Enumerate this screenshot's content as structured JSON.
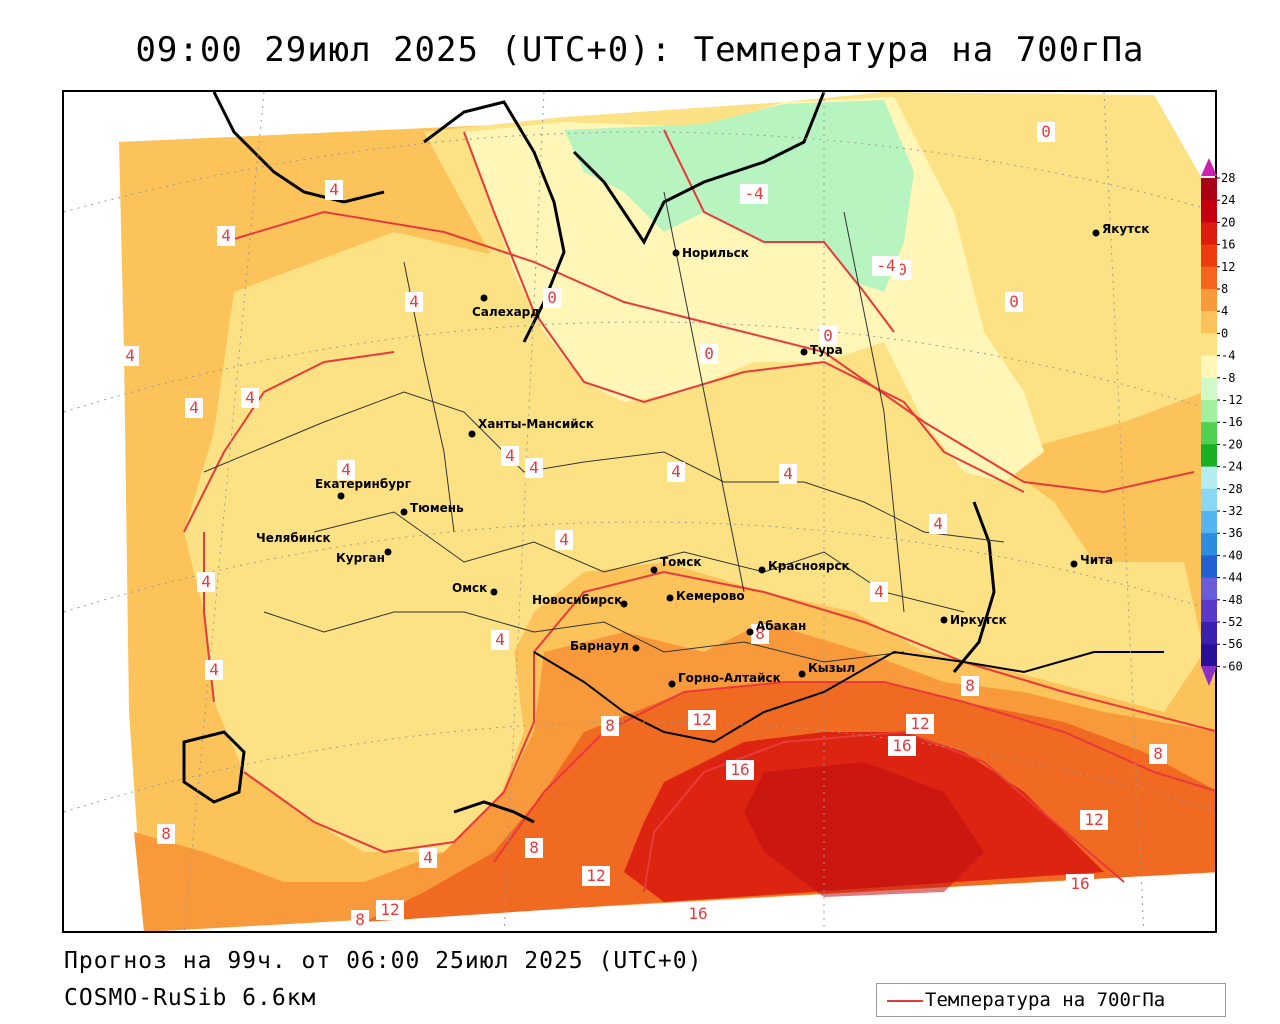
{
  "title": "09:00 29июл 2025 (UTC+0): Температура на 700гПа",
  "footer": {
    "forecast": "Прогноз на 99ч. от 06:00 25июл 2025 (UTC+0)",
    "model": "COSMO-RuSib 6.6км"
  },
  "legend": {
    "label": "Температура на 700гПа",
    "line_color": "#e83a3a"
  },
  "colorbar": {
    "ticks": [
      "28",
      "24",
      "20",
      "16",
      "12",
      "8",
      "4",
      "0",
      "-4",
      "-8",
      "-12",
      "-16",
      "-20",
      "-24",
      "-28",
      "-32",
      "-36",
      "-40",
      "-44",
      "-48",
      "-52",
      "-56",
      "-60"
    ],
    "colors": [
      "#a80016",
      "#c40010",
      "#dc1c0c",
      "#ec3c10",
      "#f4641c",
      "#f89a3c",
      "#fbc35a",
      "#fde285",
      "#fff6b8",
      "#d2f8c8",
      "#a0f0a0",
      "#50d050",
      "#18b020",
      "#b4ecf0",
      "#88d8f4",
      "#54b4f0",
      "#2c8ce0",
      "#2060d0",
      "#6a5cd8",
      "#5a38c8",
      "#3c20b0",
      "#2a1098"
    ],
    "top_arrow_color": "#d020b0",
    "bottom_arrow_color": "#8a30c8"
  },
  "fill_colors": {
    "t_below_-4": "#b8f4c0",
    "t_-4_0": "#fff6b8",
    "t_0_4": "#fde285",
    "t_4_8": "#fbc35a",
    "t_8_12": "#f89a3c",
    "t_12_16": "#f06a22",
    "t_16_20": "#dc2410",
    "t_20_24": "#c00c10"
  },
  "cities": [
    {
      "name": "Салехард"
    },
    {
      "name": "Норильск"
    },
    {
      "name": "Тура"
    },
    {
      "name": "Якутск"
    },
    {
      "name": "Ханты-Мансийск"
    },
    {
      "name": "Екатеринбург"
    },
    {
      "name": "Тюмень"
    },
    {
      "name": "Челябинск"
    },
    {
      "name": "Курган"
    },
    {
      "name": "Омск"
    },
    {
      "name": "Новосибирск"
    },
    {
      "name": "Томск"
    },
    {
      "name": "Кемерово"
    },
    {
      "name": "Красноярск"
    },
    {
      "name": "Абакан"
    },
    {
      "name": "Барнаул"
    },
    {
      "name": "Горно-Алтайск"
    },
    {
      "name": "Кызыл"
    },
    {
      "name": "Иркутск"
    },
    {
      "name": "Чита"
    }
  ],
  "isotherm_labels": [
    "0",
    "0",
    "0",
    "0",
    "0",
    "0",
    "-4",
    "-4",
    "4",
    "4",
    "4",
    "4",
    "4",
    "4",
    "4",
    "4",
    "4",
    "4",
    "4",
    "4",
    "4",
    "4",
    "4",
    "4",
    "4",
    "4",
    "8",
    "8",
    "8",
    "8",
    "8",
    "8",
    "8",
    "12",
    "12",
    "12",
    "12",
    "12",
    "16",
    "16",
    "16",
    "16"
  ]
}
